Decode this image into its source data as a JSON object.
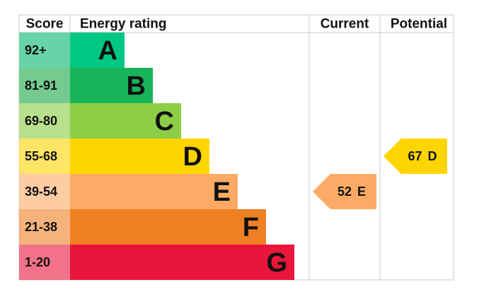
{
  "chart_data": {
    "type": "epc",
    "headers": [
      "Score",
      "Energy rating",
      "Current",
      "Potential"
    ],
    "bands": [
      {
        "range": "92+",
        "letter": "A",
        "color": "#00c781",
        "score_color": "#66d4a8"
      },
      {
        "range": "81-91",
        "letter": "B",
        "color": "#19b459",
        "score_color": "#75cb8f"
      },
      {
        "range": "69-80",
        "letter": "C",
        "color": "#8dce46",
        "score_color": "#b9e08d"
      },
      {
        "range": "55-68",
        "letter": "D",
        "color": "#ffd500",
        "score_color": "#ffe566"
      },
      {
        "range": "39-54",
        "letter": "E",
        "color": "#fcaa65",
        "score_color": "#fdcca2"
      },
      {
        "range": "21-38",
        "letter": "F",
        "color": "#ef8023",
        "score_color": "#f5b27b"
      },
      {
        "range": "1-20",
        "letter": "G",
        "color": "#e9153b",
        "score_color": "#f27389"
      }
    ],
    "current": {
      "value": 52,
      "letter": "E"
    },
    "potential": {
      "value": 67,
      "letter": "D"
    }
  }
}
